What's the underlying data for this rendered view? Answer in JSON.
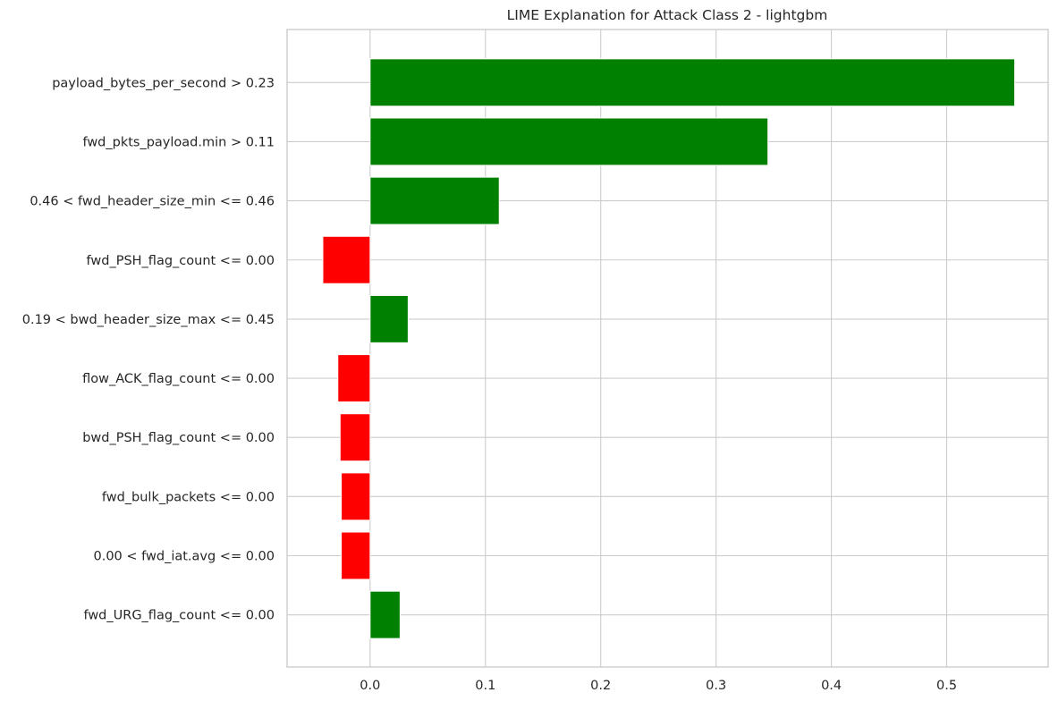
{
  "chart_data": {
    "type": "bar",
    "orientation": "horizontal",
    "title": "LIME Explanation for Attack Class 2 - lightgbm",
    "xlabel": "",
    "ylabel": "",
    "categories": [
      "payload_bytes_per_second > 0.23",
      "fwd_pkts_payload.min > 0.11",
      "0.46 < fwd_header_size_min <= 0.46",
      "fwd_PSH_flag_count <= 0.00",
      "0.19 < bwd_header_size_max <= 0.45",
      "flow_ACK_flag_count <= 0.00",
      "bwd_PSH_flag_count <= 0.00",
      "fwd_bulk_packets <= 0.00",
      "0.00 < fwd_iat.avg <= 0.00",
      "fwd_URG_flag_count <= 0.00"
    ],
    "values": [
      0.559,
      0.345,
      0.112,
      -0.041,
      0.033,
      -0.028,
      -0.026,
      -0.025,
      -0.025,
      0.026
    ],
    "xlim": [
      -0.072,
      0.588
    ],
    "xticks": [
      0.0,
      0.1,
      0.2,
      0.3,
      0.4,
      0.5
    ],
    "xtick_labels": [
      "0.0",
      "0.1",
      "0.2",
      "0.3",
      "0.4",
      "0.5"
    ],
    "grid": true,
    "colors": {
      "positive": "#008000",
      "negative": "#ff0000",
      "grid": "#cccccc",
      "text": "#262626"
    }
  }
}
